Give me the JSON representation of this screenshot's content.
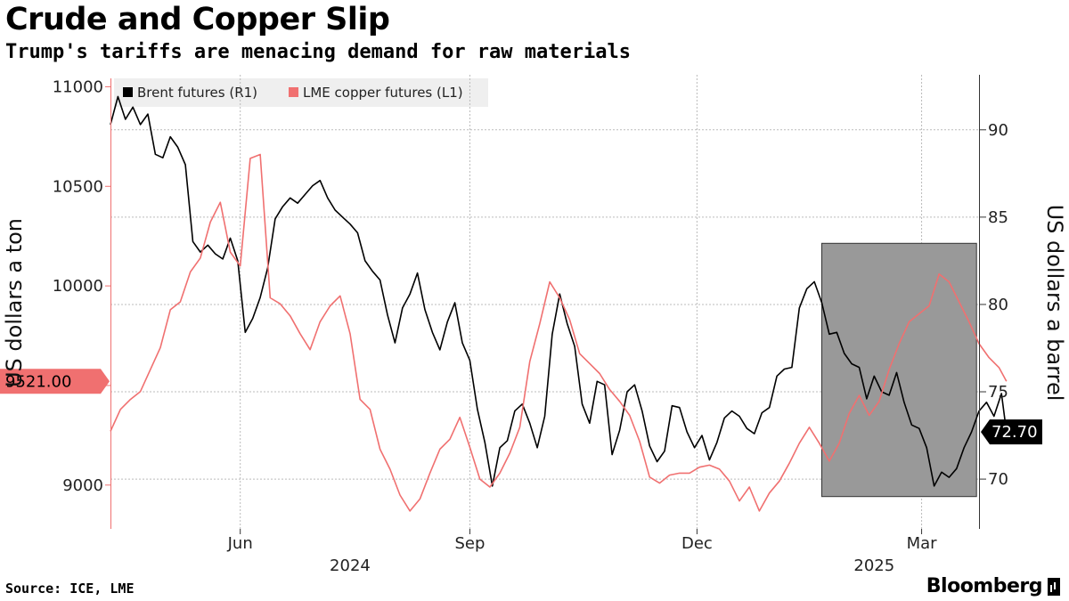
{
  "header": {
    "title": "Crude and Copper Slip",
    "subtitle": "Trump's tariffs are menacing demand for raw materials"
  },
  "footer": {
    "source": "Source: ICE, LME",
    "brand": "Bloomberg"
  },
  "colors": {
    "brent": "#000000",
    "copper": "#f07070",
    "grid": "#bbbbbb",
    "highlight_box": "#999999",
    "copper_tag": "#f07070",
    "brent_tag": "#000000",
    "legend_bg": "#efefef"
  },
  "chart_data": {
    "type": "line",
    "title": "Crude and Copper Slip",
    "subtitle": "Trump's tariffs are menacing demand for raw materials",
    "left_axis": {
      "label": "US dollars a ton",
      "ticks": [
        9000,
        9500,
        10000,
        10500,
        11000
      ],
      "tick_labels": [
        "9000",
        "",
        "10000",
        "10500",
        "11000"
      ],
      "range": [
        8780,
        11060
      ]
    },
    "right_axis": {
      "label": "US dollars a barrel",
      "ticks": [
        70,
        75,
        80,
        85,
        90
      ],
      "tick_labels": [
        "70",
        "75",
        "80",
        "85",
        "90"
      ],
      "range": [
        67.15,
        93.15
      ]
    },
    "x_axis": {
      "range": [
        "2024-04-10",
        "2025-03-24"
      ],
      "month_ticks": [
        {
          "date": "2024-06-01",
          "label": "Jun"
        },
        {
          "date": "2024-09-01",
          "label": "Sep"
        },
        {
          "date": "2024-12-01",
          "label": "Dec"
        },
        {
          "date": "2025-03-01",
          "label": "Mar"
        }
      ],
      "year_labels": [
        {
          "date": "2024-07-15",
          "label": "2024"
        },
        {
          "date": "2025-02-10",
          "label": "2025"
        }
      ]
    },
    "grid": true,
    "legend": {
      "position": "top-left",
      "entries": [
        "Brent futures (R1)",
        "LME copper futures (L1)"
      ]
    },
    "highlight": {
      "x_start": "2025-01-20",
      "x_end": "2025-03-23",
      "y_low": 69.0,
      "y_high": 83.5
    },
    "last_value_tags": {
      "copper": "9521.00",
      "brent": "72.70"
    },
    "series": [
      {
        "name": "Brent futures (R1)",
        "axis": "right",
        "points": [
          [
            "2024-04-10",
            90.3
          ],
          [
            "2024-04-13",
            91.9
          ],
          [
            "2024-04-16",
            90.6
          ],
          [
            "2024-04-19",
            91.3
          ],
          [
            "2024-04-22",
            90.3
          ],
          [
            "2024-04-25",
            90.9
          ],
          [
            "2024-04-28",
            88.6
          ],
          [
            "2024-05-01",
            88.4
          ],
          [
            "2024-05-04",
            89.6
          ],
          [
            "2024-05-07",
            89.0
          ],
          [
            "2024-05-10",
            88.0
          ],
          [
            "2024-05-13",
            83.6
          ],
          [
            "2024-05-16",
            83.0
          ],
          [
            "2024-05-19",
            83.4
          ],
          [
            "2024-05-22",
            82.9
          ],
          [
            "2024-05-25",
            82.6
          ],
          [
            "2024-05-28",
            83.8
          ],
          [
            "2024-05-31",
            82.5
          ],
          [
            "2024-06-03",
            78.4
          ],
          [
            "2024-06-06",
            79.2
          ],
          [
            "2024-06-09",
            80.4
          ],
          [
            "2024-06-12",
            82.1
          ],
          [
            "2024-06-15",
            84.9
          ],
          [
            "2024-06-18",
            85.6
          ],
          [
            "2024-06-21",
            86.1
          ],
          [
            "2024-06-24",
            85.8
          ],
          [
            "2024-06-27",
            86.3
          ],
          [
            "2024-06-30",
            86.8
          ],
          [
            "2024-07-03",
            87.1
          ],
          [
            "2024-07-06",
            86.1
          ],
          [
            "2024-07-09",
            85.4
          ],
          [
            "2024-07-12",
            85.0
          ],
          [
            "2024-07-15",
            84.6
          ],
          [
            "2024-07-18",
            84.1
          ],
          [
            "2024-07-21",
            82.5
          ],
          [
            "2024-07-24",
            81.9
          ],
          [
            "2024-07-27",
            81.4
          ],
          [
            "2024-07-30",
            79.4
          ],
          [
            "2024-08-02",
            77.8
          ],
          [
            "2024-08-05",
            79.8
          ],
          [
            "2024-08-08",
            80.6
          ],
          [
            "2024-08-11",
            81.8
          ],
          [
            "2024-08-14",
            79.7
          ],
          [
            "2024-08-17",
            78.4
          ],
          [
            "2024-08-20",
            77.4
          ],
          [
            "2024-08-23",
            79.0
          ],
          [
            "2024-08-26",
            80.1
          ],
          [
            "2024-08-29",
            77.8
          ],
          [
            "2024-09-01",
            76.8
          ],
          [
            "2024-09-04",
            74.0
          ],
          [
            "2024-09-07",
            72.1
          ],
          [
            "2024-09-10",
            69.6
          ],
          [
            "2024-09-13",
            71.8
          ],
          [
            "2024-09-16",
            72.2
          ],
          [
            "2024-09-19",
            73.9
          ],
          [
            "2024-09-22",
            74.3
          ],
          [
            "2024-09-25",
            73.2
          ],
          [
            "2024-09-28",
            71.8
          ],
          [
            "2024-10-01",
            73.6
          ],
          [
            "2024-10-04",
            78.3
          ],
          [
            "2024-10-07",
            80.6
          ],
          [
            "2024-10-10",
            78.9
          ],
          [
            "2024-10-13",
            77.6
          ],
          [
            "2024-10-16",
            74.3
          ],
          [
            "2024-10-19",
            73.2
          ],
          [
            "2024-10-22",
            75.6
          ],
          [
            "2024-10-25",
            75.4
          ],
          [
            "2024-10-28",
            71.4
          ],
          [
            "2024-10-31",
            72.8
          ],
          [
            "2024-11-03",
            75.0
          ],
          [
            "2024-11-06",
            75.4
          ],
          [
            "2024-11-09",
            73.9
          ],
          [
            "2024-11-12",
            71.9
          ],
          [
            "2024-11-15",
            71.0
          ],
          [
            "2024-11-18",
            71.6
          ],
          [
            "2024-11-21",
            74.2
          ],
          [
            "2024-11-24",
            74.1
          ],
          [
            "2024-11-27",
            72.7
          ],
          [
            "2024-11-30",
            71.8
          ],
          [
            "2024-12-03",
            72.5
          ],
          [
            "2024-12-06",
            71.1
          ],
          [
            "2024-12-09",
            72.1
          ],
          [
            "2024-12-12",
            73.5
          ],
          [
            "2024-12-15",
            73.9
          ],
          [
            "2024-12-18",
            73.6
          ],
          [
            "2024-12-21",
            72.9
          ],
          [
            "2024-12-24",
            72.6
          ],
          [
            "2024-12-27",
            73.8
          ],
          [
            "2024-12-30",
            74.1
          ],
          [
            "2025-01-02",
            75.9
          ],
          [
            "2025-01-05",
            76.3
          ],
          [
            "2025-01-08",
            76.4
          ],
          [
            "2025-01-11",
            79.8
          ],
          [
            "2025-01-14",
            80.9
          ],
          [
            "2025-01-17",
            81.3
          ],
          [
            "2025-01-20",
            80.1
          ],
          [
            "2025-01-23",
            78.3
          ],
          [
            "2025-01-26",
            78.4
          ],
          [
            "2025-01-29",
            77.2
          ],
          [
            "2025-02-01",
            76.6
          ],
          [
            "2025-02-04",
            76.4
          ],
          [
            "2025-02-07",
            74.6
          ],
          [
            "2025-02-10",
            75.9
          ],
          [
            "2025-02-13",
            75.0
          ],
          [
            "2025-02-16",
            74.8
          ],
          [
            "2025-02-19",
            76.1
          ],
          [
            "2025-02-22",
            74.4
          ],
          [
            "2025-02-25",
            73.1
          ],
          [
            "2025-02-28",
            72.9
          ],
          [
            "2025-03-03",
            71.8
          ],
          [
            "2025-03-06",
            69.6
          ],
          [
            "2025-03-09",
            70.4
          ],
          [
            "2025-03-12",
            70.1
          ],
          [
            "2025-03-15",
            70.6
          ],
          [
            "2025-03-18",
            71.8
          ],
          [
            "2025-03-21",
            72.7
          ],
          [
            "2025-03-24",
            73.9
          ],
          [
            "2025-03-27",
            74.4
          ],
          [
            "2025-03-30",
            73.6
          ],
          [
            "2025-04-02",
            74.9
          ],
          [
            "2025-04-04",
            72.7
          ]
        ]
      },
      {
        "name": "LME copper futures (L1)",
        "axis": "left",
        "points": [
          [
            "2024-04-10",
            9270
          ],
          [
            "2024-04-14",
            9380
          ],
          [
            "2024-04-18",
            9430
          ],
          [
            "2024-04-22",
            9470
          ],
          [
            "2024-04-26",
            9580
          ],
          [
            "2024-04-30",
            9690
          ],
          [
            "2024-05-04",
            9880
          ],
          [
            "2024-05-08",
            9920
          ],
          [
            "2024-05-12",
            10070
          ],
          [
            "2024-05-16",
            10140
          ],
          [
            "2024-05-20",
            10320
          ],
          [
            "2024-05-24",
            10420
          ],
          [
            "2024-05-28",
            10170
          ],
          [
            "2024-06-01",
            10100
          ],
          [
            "2024-06-05",
            10640
          ],
          [
            "2024-06-09",
            10660
          ],
          [
            "2024-06-13",
            9940
          ],
          [
            "2024-06-17",
            9910
          ],
          [
            "2024-06-21",
            9850
          ],
          [
            "2024-06-25",
            9760
          ],
          [
            "2024-06-29",
            9680
          ],
          [
            "2024-07-03",
            9820
          ],
          [
            "2024-07-07",
            9900
          ],
          [
            "2024-07-11",
            9950
          ],
          [
            "2024-07-15",
            9760
          ],
          [
            "2024-07-19",
            9430
          ],
          [
            "2024-07-23",
            9380
          ],
          [
            "2024-07-27",
            9180
          ],
          [
            "2024-07-31",
            9080
          ],
          [
            "2024-08-04",
            8950
          ],
          [
            "2024-08-08",
            8870
          ],
          [
            "2024-08-12",
            8930
          ],
          [
            "2024-08-16",
            9060
          ],
          [
            "2024-08-20",
            9180
          ],
          [
            "2024-08-24",
            9230
          ],
          [
            "2024-08-28",
            9340
          ],
          [
            "2024-09-01",
            9190
          ],
          [
            "2024-09-05",
            9030
          ],
          [
            "2024-09-09",
            8990
          ],
          [
            "2024-09-13",
            9060
          ],
          [
            "2024-09-17",
            9160
          ],
          [
            "2024-09-21",
            9290
          ],
          [
            "2024-09-25",
            9620
          ],
          [
            "2024-09-29",
            9810
          ],
          [
            "2024-10-03",
            10020
          ],
          [
            "2024-10-07",
            9940
          ],
          [
            "2024-10-11",
            9830
          ],
          [
            "2024-10-15",
            9660
          ],
          [
            "2024-10-19",
            9610
          ],
          [
            "2024-10-23",
            9560
          ],
          [
            "2024-10-27",
            9480
          ],
          [
            "2024-10-31",
            9420
          ],
          [
            "2024-11-04",
            9350
          ],
          [
            "2024-11-08",
            9220
          ],
          [
            "2024-11-12",
            9040
          ],
          [
            "2024-11-16",
            9010
          ],
          [
            "2024-11-20",
            9050
          ],
          [
            "2024-11-24",
            9060
          ],
          [
            "2024-11-28",
            9060
          ],
          [
            "2024-12-02",
            9090
          ],
          [
            "2024-12-06",
            9100
          ],
          [
            "2024-12-10",
            9080
          ],
          [
            "2024-12-14",
            9020
          ],
          [
            "2024-12-18",
            8920
          ],
          [
            "2024-12-22",
            8990
          ],
          [
            "2024-12-26",
            8870
          ],
          [
            "2024-12-30",
            8960
          ],
          [
            "2025-01-03",
            9020
          ],
          [
            "2025-01-07",
            9110
          ],
          [
            "2025-01-11",
            9210
          ],
          [
            "2025-01-15",
            9290
          ],
          [
            "2025-01-19",
            9210
          ],
          [
            "2025-01-23",
            9120
          ],
          [
            "2025-01-27",
            9210
          ],
          [
            "2025-01-31",
            9360
          ],
          [
            "2025-02-04",
            9450
          ],
          [
            "2025-02-08",
            9350
          ],
          [
            "2025-02-12",
            9420
          ],
          [
            "2025-02-16",
            9580
          ],
          [
            "2025-02-20",
            9710
          ],
          [
            "2025-02-24",
            9820
          ],
          [
            "2025-02-28",
            9860
          ],
          [
            "2025-03-04",
            9900
          ],
          [
            "2025-03-08",
            10060
          ],
          [
            "2025-03-12",
            10020
          ],
          [
            "2025-03-16",
            9920
          ],
          [
            "2025-03-20",
            9820
          ],
          [
            "2025-03-24",
            9710
          ],
          [
            "2025-03-28",
            9640
          ],
          [
            "2025-04-01",
            9590
          ],
          [
            "2025-04-04",
            9521
          ]
        ]
      }
    ]
  }
}
